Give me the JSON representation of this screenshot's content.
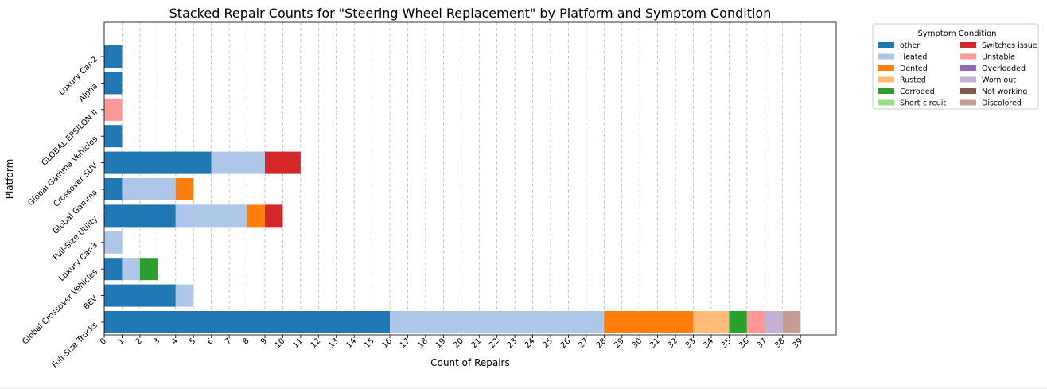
{
  "chart_data": {
    "type": "bar",
    "orientation": "horizontal",
    "stacked": true,
    "title": "Stacked Repair Counts for \"Steering Wheel Replacement\" by Platform and Symptom Condition",
    "xlabel": "Count of Repairs",
    "ylabel": "Platform",
    "xlim": [
      0,
      41
    ],
    "x_ticks": [
      0,
      1,
      2,
      3,
      4,
      5,
      6,
      7,
      8,
      9,
      10,
      11,
      12,
      13,
      14,
      15,
      16,
      17,
      18,
      19,
      20,
      21,
      22,
      23,
      24,
      25,
      26,
      27,
      28,
      29,
      30,
      31,
      32,
      33,
      34,
      35,
      36,
      37,
      38,
      39
    ],
    "grid": "x-dashed",
    "legend_title": "Symptom Condition",
    "legend_position": "outside-right",
    "categories": [
      "Full-Size Trucks",
      "BEV",
      "Global Crossover Vehicles",
      "Luxury Car-3",
      "Full-Size Utility",
      "Global Gamma",
      "Crossover SUV",
      "Global Gamma Vehicles",
      "GLOBAL EPSILON II",
      "Alpha",
      "Luxury Car-2"
    ],
    "series": [
      {
        "name": "other",
        "color": "#1f77b4",
        "values": [
          16,
          4,
          1,
          0,
          4,
          1,
          6,
          1,
          0,
          1,
          1
        ]
      },
      {
        "name": "Heated",
        "color": "#aec7e8",
        "values": [
          12,
          1,
          1,
          1,
          4,
          3,
          3,
          0,
          0,
          0,
          0
        ]
      },
      {
        "name": "Dented",
        "color": "#ff7f0e",
        "values": [
          5,
          0,
          0,
          0,
          1,
          1,
          0,
          0,
          0,
          0,
          0
        ]
      },
      {
        "name": "Rusted",
        "color": "#ffbb78",
        "values": [
          2,
          0,
          0,
          0,
          0,
          0,
          0,
          0,
          0,
          0,
          0
        ]
      },
      {
        "name": "Corroded",
        "color": "#2ca02c",
        "values": [
          1,
          0,
          1,
          0,
          0,
          0,
          0,
          0,
          0,
          0,
          0
        ]
      },
      {
        "name": "Short-circuit",
        "color": "#98df8a",
        "values": [
          0,
          0,
          0,
          0,
          0,
          0,
          0,
          0,
          0,
          0,
          0
        ]
      },
      {
        "name": "Switches issue",
        "color": "#d62728",
        "values": [
          0,
          0,
          0,
          0,
          1,
          0,
          2,
          0,
          0,
          0,
          0
        ]
      },
      {
        "name": "Unstable",
        "color": "#ff9896",
        "values": [
          1,
          0,
          0,
          0,
          0,
          0,
          0,
          0,
          1,
          0,
          0
        ]
      },
      {
        "name": "Overloaded",
        "color": "#9467bd",
        "values": [
          0,
          0,
          0,
          0,
          0,
          0,
          0,
          0,
          0,
          0,
          0
        ]
      },
      {
        "name": "Worn out",
        "color": "#c5b0d5",
        "values": [
          1,
          0,
          0,
          0,
          0,
          0,
          0,
          0,
          0,
          0,
          0
        ]
      },
      {
        "name": "Not working",
        "color": "#8c564b",
        "values": [
          0,
          0,
          0,
          0,
          0,
          0,
          0,
          0,
          0,
          0,
          0
        ]
      },
      {
        "name": "Discolored",
        "color": "#c49c94",
        "values": [
          1,
          0,
          0,
          0,
          0,
          0,
          0,
          0,
          0,
          0,
          0
        ]
      }
    ]
  }
}
